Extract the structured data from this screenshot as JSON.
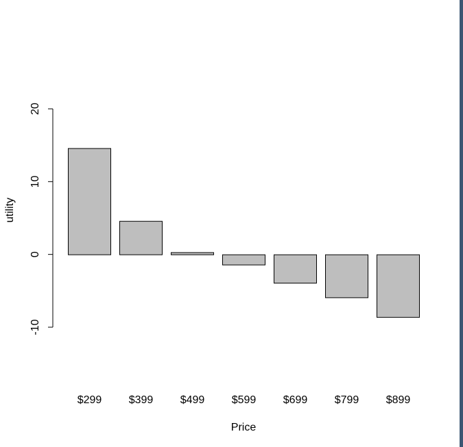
{
  "chart_data": {
    "type": "bar",
    "title": "",
    "xlabel": "Price",
    "ylabel": "utility",
    "categories": [
      "$299",
      "$399",
      "$499",
      "$599",
      "$699",
      "$799",
      "$899"
    ],
    "values": [
      14.6,
      4.6,
      0.3,
      -1.4,
      -3.9,
      -5.9,
      -8.6
    ],
    "ylim": [
      -10,
      20
    ],
    "yticks": [
      -10,
      0,
      10,
      20
    ],
    "ytick_labels": [
      "-10",
      "0",
      "10",
      "20"
    ],
    "grid": false,
    "colors": {
      "bar_fill": "#bebebe",
      "bar_stroke": "#000000",
      "right_edge": "#3c5673"
    }
  }
}
